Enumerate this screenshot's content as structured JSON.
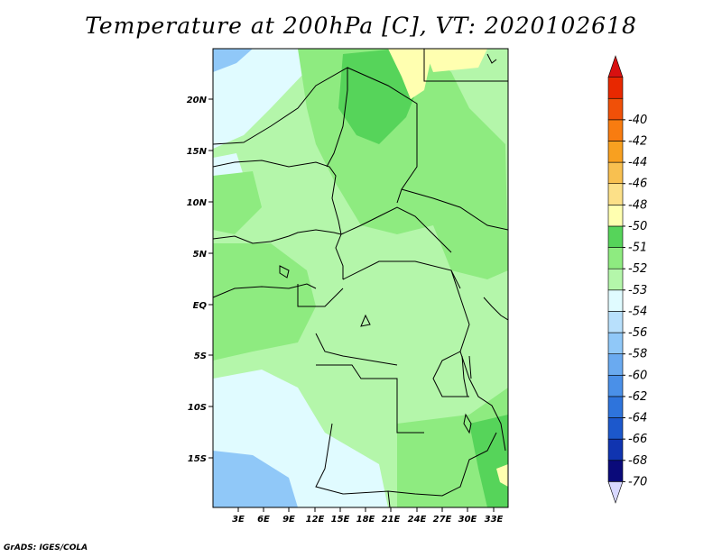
{
  "title": "Temperature at 200hPa [C], VT: 2020102618",
  "footer": "GrADS: IGES/COLA",
  "lat_ticks": [
    "20N",
    "15N",
    "10N",
    "5N",
    "EQ",
    "5S",
    "10S",
    "15S"
  ],
  "lon_ticks": [
    "3E",
    "6E",
    "9E",
    "12E",
    "15E",
    "18E",
    "21E",
    "24E",
    "27E",
    "30E",
    "33E"
  ],
  "colorbar": {
    "colors": [
      "#d8d8ff",
      "#0a0a7a",
      "#1034b0",
      "#1c58cc",
      "#2e74dc",
      "#4a90e8",
      "#6aaaf0",
      "#90c8f8",
      "#b8e0fc",
      "#e0fbff",
      "#b4f6aa",
      "#8eeb80",
      "#56d45a",
      "#ffffb0",
      "#fce088",
      "#f8c050",
      "#f8a020",
      "#f87c10",
      "#f05008",
      "#e82800",
      "#d81010"
    ],
    "labels": [
      "-70",
      "-68",
      "-66",
      "-64",
      "-62",
      "-60",
      "-58",
      "-56",
      "-54",
      "-53",
      "-52",
      "-51",
      "-50",
      "-48",
      "-46",
      "-44",
      "-42",
      "-40"
    ]
  },
  "colors": {
    "lightest_blue": "#e0fbff",
    "light_blue": "#90c8f8",
    "pale_green": "#b4f6aa",
    "mid_green": "#8eeb80",
    "green": "#56d45a",
    "pale_yellow": "#ffffb0"
  }
}
